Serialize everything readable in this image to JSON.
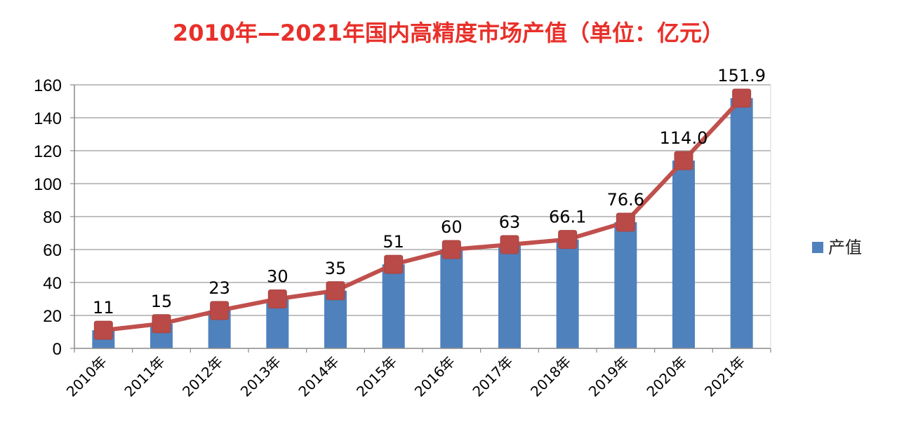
{
  "chart_data": {
    "type": "bar",
    "title": "2010年—2021年国内高精度市场产值（单位：亿元）",
    "categories": [
      "2010年",
      "2011年",
      "2012年",
      "2013年",
      "2014年",
      "2015年",
      "2016年",
      "2017年",
      "2018年",
      "2019年",
      "2020年",
      "2021年"
    ],
    "series": [
      {
        "name": "产值",
        "type": "bar",
        "color": "#4f81bd",
        "values": [
          11,
          15,
          23,
          30,
          35,
          51,
          60,
          63,
          66.1,
          76.6,
          114.0,
          151.9
        ]
      },
      {
        "type": "line",
        "color": "#c0504d",
        "values": [
          11,
          15,
          23,
          30,
          35,
          51,
          60,
          63,
          66.1,
          76.6,
          114.0,
          151.9
        ]
      }
    ],
    "data_labels": [
      "11",
      "15",
      "23",
      "30",
      "35",
      "51",
      "60",
      "63",
      "66.1",
      "76.6",
      "114.0",
      "151.9"
    ],
    "ylim": [
      0,
      160
    ],
    "yticks": [
      0,
      20,
      40,
      60,
      80,
      100,
      120,
      140,
      160
    ],
    "grid": true,
    "legend": "right",
    "title_color": "#e8302a"
  }
}
